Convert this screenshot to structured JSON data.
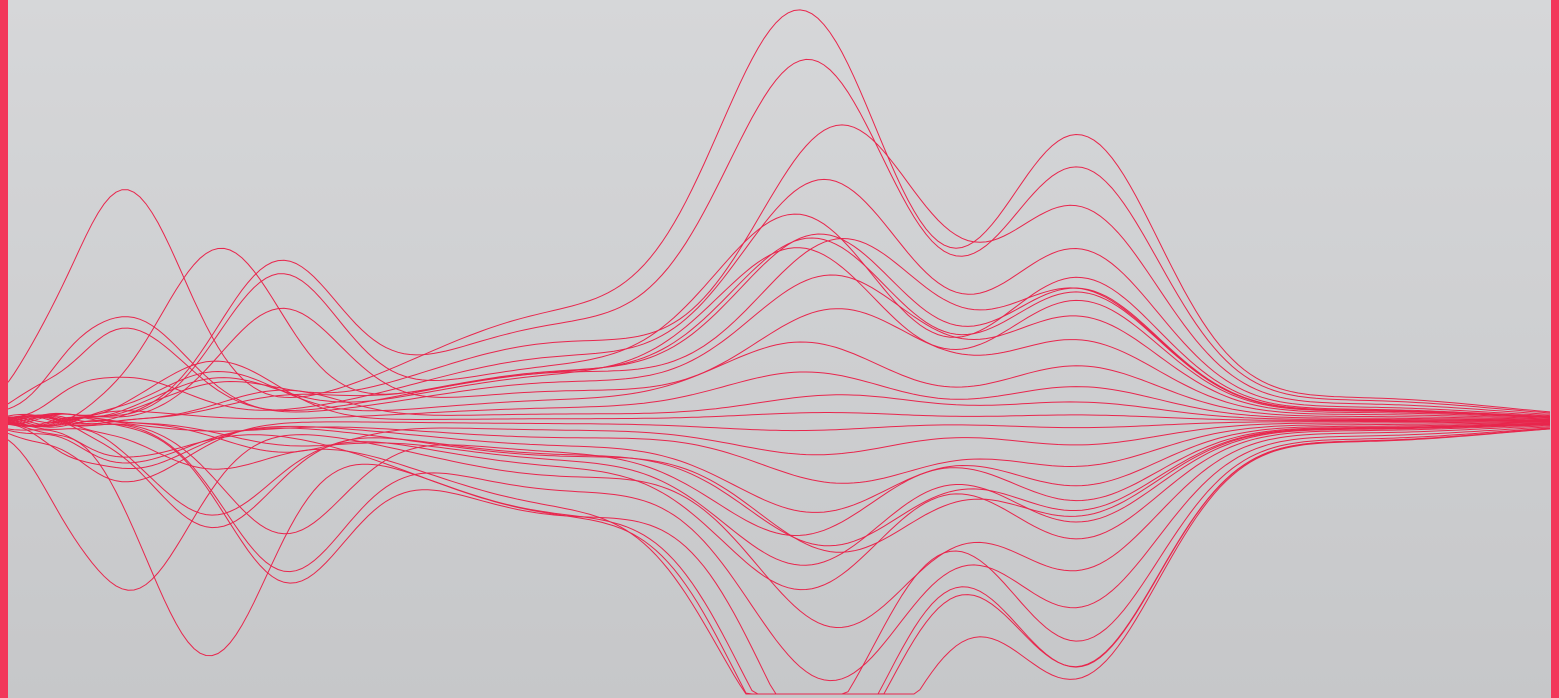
{
  "colors": {
    "frame": "#f2375a",
    "wave_stroke": "#e8264d",
    "background_top": "#d6d7d9",
    "background_bottom": "#c6c7c9"
  },
  "artwork": {
    "type": "abstract-waveform",
    "icon": "waveform-lines",
    "line_count": 30
  }
}
